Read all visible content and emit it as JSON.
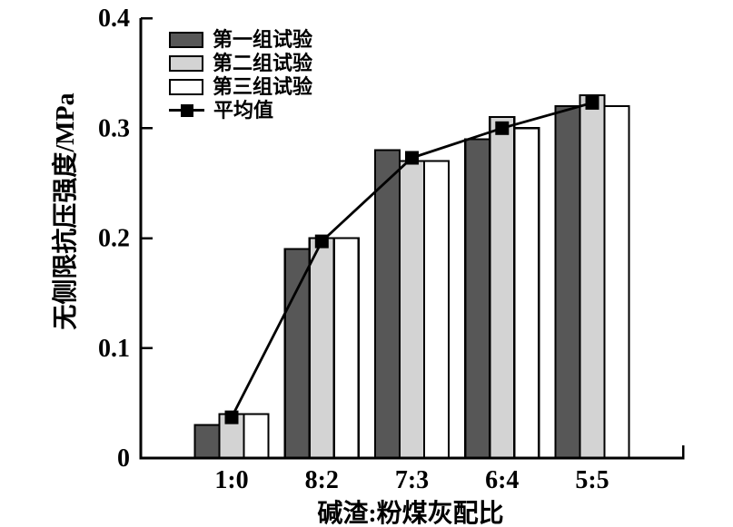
{
  "chart_data": {
    "type": "bar",
    "title": "",
    "categories": [
      "1:0",
      "8:2",
      "7:3",
      "6:4",
      "5:5"
    ],
    "series": [
      {
        "name": "第一组试验",
        "type": "bar",
        "fill": "#575757",
        "values": [
          0.03,
          0.19,
          0.28,
          0.29,
          0.32
        ]
      },
      {
        "name": "第二组试验",
        "type": "bar",
        "fill": "#d3d3d3",
        "values": [
          0.04,
          0.2,
          0.27,
          0.31,
          0.33
        ]
      },
      {
        "name": "第三组试验",
        "type": "bar",
        "fill": "#ffffff",
        "values": [
          0.04,
          0.2,
          0.27,
          0.3,
          0.32
        ]
      },
      {
        "name": "平均值",
        "type": "line",
        "color": "#000000",
        "marker": "filled-square",
        "values": [
          0.037,
          0.197,
          0.273,
          0.3,
          0.323
        ]
      }
    ],
    "xlabel": "碱渣:粉煤灰配比",
    "ylabel": "无侧限抗压强度/MPa",
    "ylim": [
      0,
      0.4
    ],
    "yticks": [
      0,
      0.1,
      0.2,
      0.3,
      0.4
    ],
    "ytick_labels": [
      "0",
      "0.1",
      "0.2",
      "0.3",
      "0.4"
    ],
    "grid": false,
    "legend_position": "top-left",
    "colors": {
      "axis": "#000000",
      "bar_border": "#000000",
      "background": "#ffffff"
    }
  }
}
